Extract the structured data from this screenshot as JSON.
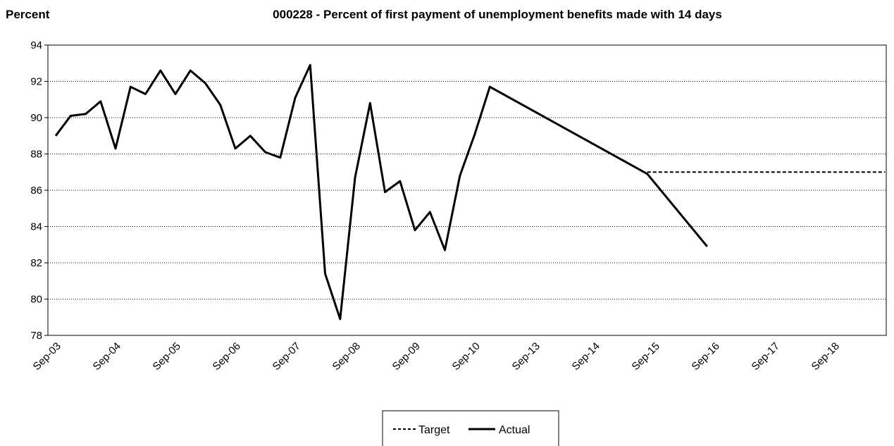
{
  "chart_data": {
    "type": "line",
    "title": "000228 - Percent of first payment of unemployment benefits made with 14 days",
    "ylabel": "Percent",
    "xlabel": "",
    "ylim": [
      78,
      94
    ],
    "yticks": [
      78,
      80,
      82,
      84,
      86,
      88,
      90,
      92,
      94
    ],
    "categories": [
      "Sep-03",
      "Sep-04",
      "Sep-05",
      "Sep-06",
      "Sep-07",
      "Sep-08",
      "Sep-09",
      "Sep-10",
      "Sep-13",
      "Sep-14",
      "Sep-15",
      "Sep-16",
      "Sep-17",
      "Sep-18"
    ],
    "grid": "horizontal dotted",
    "legend_position": "bottom-center",
    "series": [
      {
        "name": "Target",
        "style": "dashed",
        "color": "#000000",
        "points": [
          {
            "x": 9.88,
            "y": 87.0
          },
          {
            "x": 13.85,
            "y": 87.0
          }
        ]
      },
      {
        "name": "Actual",
        "style": "solid",
        "color": "#000000",
        "points": [
          {
            "x": 0.0,
            "y": 89.0
          },
          {
            "x": 0.25,
            "y": 90.1
          },
          {
            "x": 0.5,
            "y": 90.2
          },
          {
            "x": 0.75,
            "y": 90.9
          },
          {
            "x": 1.0,
            "y": 88.3
          },
          {
            "x": 1.25,
            "y": 91.7
          },
          {
            "x": 1.5,
            "y": 91.3
          },
          {
            "x": 1.75,
            "y": 92.6
          },
          {
            "x": 2.0,
            "y": 91.3
          },
          {
            "x": 2.25,
            "y": 92.6
          },
          {
            "x": 2.5,
            "y": 91.9
          },
          {
            "x": 2.75,
            "y": 90.7
          },
          {
            "x": 3.0,
            "y": 88.3
          },
          {
            "x": 3.25,
            "y": 89.0
          },
          {
            "x": 3.5,
            "y": 88.1
          },
          {
            "x": 3.75,
            "y": 87.8
          },
          {
            "x": 4.0,
            "y": 91.1
          },
          {
            "x": 4.25,
            "y": 92.9
          },
          {
            "x": 4.5,
            "y": 81.4
          },
          {
            "x": 4.75,
            "y": 78.9
          },
          {
            "x": 5.0,
            "y": 86.7
          },
          {
            "x": 5.25,
            "y": 90.8
          },
          {
            "x": 5.5,
            "y": 85.9
          },
          {
            "x": 5.75,
            "y": 86.5
          },
          {
            "x": 6.0,
            "y": 83.8
          },
          {
            "x": 6.25,
            "y": 84.8
          },
          {
            "x": 6.5,
            "y": 82.7
          },
          {
            "x": 6.75,
            "y": 86.8
          },
          {
            "x": 7.0,
            "y": 89.1
          },
          {
            "x": 7.25,
            "y": 91.7
          },
          {
            "x": 9.88,
            "y": 86.9
          },
          {
            "x": 10.88,
            "y": 82.9
          }
        ]
      }
    ]
  }
}
